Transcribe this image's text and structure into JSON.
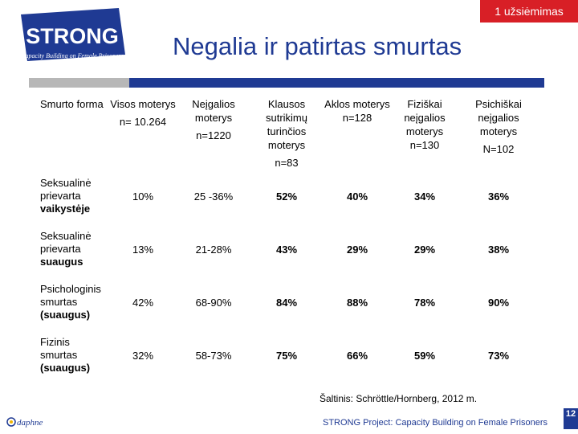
{
  "header": {
    "badge": "1 užsiėmimas",
    "title": "Negalia ir patirtas smurtas"
  },
  "logo": {
    "brand": "STRONG",
    "tagline": "Capacity Building on Female Prisoners",
    "brand_color": "#1f3a93"
  },
  "table": {
    "columns": [
      {
        "label": "Smurto forma",
        "sub": ""
      },
      {
        "label": "Visos moterys",
        "sub": "n= 10.264"
      },
      {
        "label": "Neįgalios moterys",
        "sub": "n=1220"
      },
      {
        "label": "Klausos sutrikimų turinčios moterys",
        "sub": "n=83"
      },
      {
        "label": "Aklos moterys",
        "sub": "n=128"
      },
      {
        "label": "Fiziškai neįgalios moterys",
        "sub": "n=130"
      },
      {
        "label": "Psichiškai neįgalios moterys",
        "sub": "N=102"
      }
    ],
    "rows": [
      {
        "label_line1": "Seksualinė",
        "label_line2": "prievarta",
        "label_bold": "vaikystėje",
        "values": [
          "10%",
          "25 -36%",
          "52%",
          "40%",
          "34%",
          "36%"
        ]
      },
      {
        "label_line1": "Seksualinė",
        "label_line2": "prievarta",
        "label_bold": "suaugus",
        "values": [
          "13%",
          "21-28%",
          "43%",
          "29%",
          "29%",
          "38%"
        ]
      },
      {
        "label_line1": "Psichologinis",
        "label_line2": "smurtas",
        "label_bold": "(suaugus)",
        "values": [
          "42%",
          "68-90%",
          "84%",
          "88%",
          "78%",
          "90%"
        ]
      },
      {
        "label_line1": "Fizinis",
        "label_line2": "smurtas",
        "label_bold": "(suaugus)",
        "values": [
          "32%",
          "58-73%",
          "75%",
          "66%",
          "59%",
          "73%"
        ]
      }
    ]
  },
  "source": "Šaltinis: Schröttle/Hornberg, 2012 m.",
  "footer": {
    "project": "STRONG Project: Capacity Building on Female Prisoners",
    "page_number": "12",
    "daphne_logo_text": "daphne"
  },
  "colors": {
    "badge": "#d81f26",
    "accent_blue": "#1f3a93",
    "gray_bar": "#b7b7b7"
  }
}
